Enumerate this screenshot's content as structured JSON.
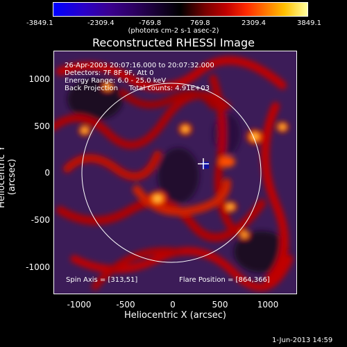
{
  "colorbar": {
    "ticks": [
      "-3849.1",
      "-2309.4",
      "-769.8",
      "769.8",
      "2309.4",
      "3849.1"
    ],
    "units": "(photons cm-2 s-1 asec-2)"
  },
  "title": "Reconstructed RHESSI Image",
  "info": {
    "line1": "26-Apr-2003 20:07:16.000 to 20:07:32.000",
    "line2": "Detectors: 7F 8F 9F, Att 0",
    "line3": "Energy Range: 6.0 - 25.0 keV",
    "line4": "Back Projection     Total counts: 4.91E+03"
  },
  "spin_axis": "Spin Axis = [313,51]",
  "flare_position": "Flare Position = [864,366]",
  "axes": {
    "xlabel": "Heliocentric X (arcsec)",
    "ylabel": "Heliocentric Y (arcsec)",
    "xticks": [
      "-1000",
      "-500",
      "0",
      "500",
      "1000"
    ],
    "yticks": [
      "1000",
      "500",
      "0",
      "-500",
      "-1000"
    ]
  },
  "date_stamp": "1-Jun-2013 14:59",
  "colors": {
    "background": "#000000",
    "axis": "#ffffff",
    "limb": "#ffffff",
    "marker": "#ffffff"
  }
}
